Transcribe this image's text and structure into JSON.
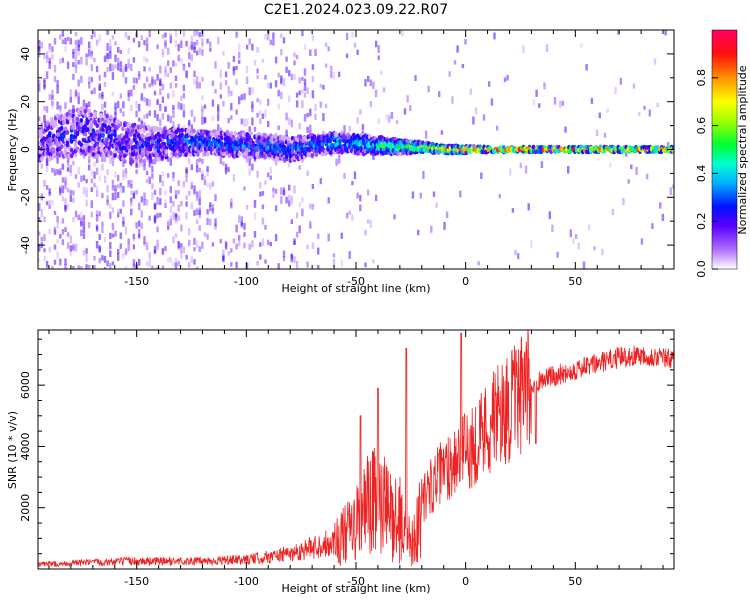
{
  "title": "C2E1.2024.023.09.22.R07",
  "colors": {
    "plot_border": "#000000",
    "snr_line": "#ee2222",
    "background": "#ffffff"
  },
  "chart_data": [
    {
      "type": "heatmap",
      "xlabel": "Height of straight line (km)",
      "ylabel": "Frequency (Hz)",
      "xlim": [
        -195,
        95
      ],
      "ylim": [
        -50,
        50
      ],
      "x_ticks": [
        -150,
        -100,
        -50,
        0,
        50
      ],
      "y_ticks": [
        -40,
        -20,
        0,
        20,
        40
      ],
      "colorbar": {
        "label": "Normalized spectral amplitude",
        "range": [
          0.0,
          1.0
        ],
        "ticks": [
          0.0,
          0.2,
          0.4,
          0.6,
          0.8
        ],
        "tick_labels": [
          "0.0",
          "0.2",
          "0.4",
          "0.6",
          "0.8"
        ],
        "colormap": [
          "#ffffff",
          "#b070ff",
          "#5a00ff",
          "#0010ff",
          "#00b0ff",
          "#00ffd0",
          "#00ff30",
          "#a0ff00",
          "#ffff00",
          "#ff9000",
          "#ff1010",
          "#ff0060"
        ]
      },
      "profile": {
        "heights": [
          -195,
          -175,
          -150,
          -125,
          -100,
          -80,
          -60,
          -45,
          -30,
          -20,
          -10,
          0,
          10,
          50,
          95
        ],
        "center_freq": [
          3,
          8,
          2,
          3,
          2,
          0,
          3,
          2,
          1,
          1,
          0,
          0,
          0,
          0,
          0
        ],
        "spread_hz": [
          8,
          10,
          8,
          5,
          5,
          5,
          4,
          4,
          3,
          2,
          1.5,
          1.5,
          1,
          1,
          1
        ],
        "peak_amplitude": [
          0.18,
          0.22,
          0.2,
          0.3,
          0.3,
          0.28,
          0.35,
          0.4,
          0.55,
          0.65,
          0.8,
          0.85,
          0.95,
          0.9,
          0.85
        ]
      }
    },
    {
      "type": "line",
      "xlabel": "Height of straight line (km)",
      "ylabel": "SNR (10 * v/v)",
      "xlim": [
        -195,
        95
      ],
      "ylim": [
        0,
        7800
      ],
      "x_ticks": [
        -150,
        -100,
        -50,
        0,
        50
      ],
      "y_ticks": [
        2000,
        4000,
        6000
      ],
      "series": [
        {
          "x": [
            -195,
            -175,
            -150,
            -125,
            -110,
            -100,
            -90,
            -80,
            -70,
            -60,
            -55,
            -50,
            -45,
            -40,
            -35,
            -30,
            -28,
            -25,
            -22,
            -20,
            -15,
            -10,
            -5,
            0,
            5,
            10,
            15,
            20,
            25,
            30,
            32,
            35,
            40,
            50,
            60,
            70,
            80,
            90,
            95
          ],
          "values": [
            150,
            200,
            260,
            250,
            280,
            300,
            400,
            500,
            700,
            900,
            1100,
            1400,
            2000,
            2200,
            1800,
            1600,
            1200,
            900,
            1300,
            2200,
            2800,
            3200,
            3600,
            3800,
            4200,
            4700,
            5000,
            5300,
            5600,
            5900,
            6100,
            6200,
            6300,
            6500,
            6700,
            6900,
            7000,
            6900,
            6800
          ],
          "spikes": [
            {
              "x": -48,
              "value": 5000
            },
            {
              "x": -40,
              "value": 5900
            },
            {
              "x": -27,
              "value": 7200
            },
            {
              "x": -2,
              "value": 7700
            },
            {
              "x": 32,
              "value": 4100
            }
          ]
        }
      ]
    }
  ]
}
